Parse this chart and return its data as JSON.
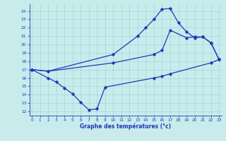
{
  "line1_x": [
    0,
    2,
    3,
    4,
    5,
    6,
    7,
    8,
    9,
    15,
    16,
    17,
    22,
    23
  ],
  "line1_y": [
    17,
    16.0,
    15.5,
    14.8,
    14.1,
    13.1,
    12.2,
    12.3,
    14.9,
    16.0,
    16.2,
    16.5,
    17.8,
    18.2
  ],
  "line2_x": [
    0,
    2,
    10,
    15,
    16,
    17,
    19,
    20,
    21,
    22,
    23
  ],
  "line2_y": [
    17.0,
    16.8,
    17.8,
    18.8,
    19.3,
    21.7,
    20.8,
    20.9,
    20.9,
    20.2,
    18.2
  ],
  "line3_x": [
    0,
    2,
    10,
    13,
    14,
    15,
    16,
    17,
    18,
    19,
    20,
    21,
    22,
    23
  ],
  "line3_y": [
    17.0,
    16.8,
    18.8,
    21.0,
    22.0,
    23.0,
    24.2,
    24.3,
    22.6,
    21.5,
    20.8,
    20.9,
    20.2,
    18.2
  ],
  "line_color": "#1c39bb",
  "bg_color": "#c8ecec",
  "grid_color": "#a8d4d4",
  "xlabel": "Graphe des températures (°c)",
  "xlabel_color": "#1c39bb",
  "yticks": [
    12,
    13,
    14,
    15,
    16,
    17,
    18,
    19,
    20,
    21,
    22,
    23,
    24
  ],
  "xticks": [
    0,
    1,
    2,
    3,
    4,
    5,
    6,
    7,
    8,
    9,
    10,
    11,
    12,
    13,
    14,
    15,
    16,
    17,
    18,
    19,
    20,
    21,
    22,
    23
  ],
  "xlim": [
    -0.3,
    23.3
  ],
  "ylim": [
    11.5,
    24.8
  ]
}
